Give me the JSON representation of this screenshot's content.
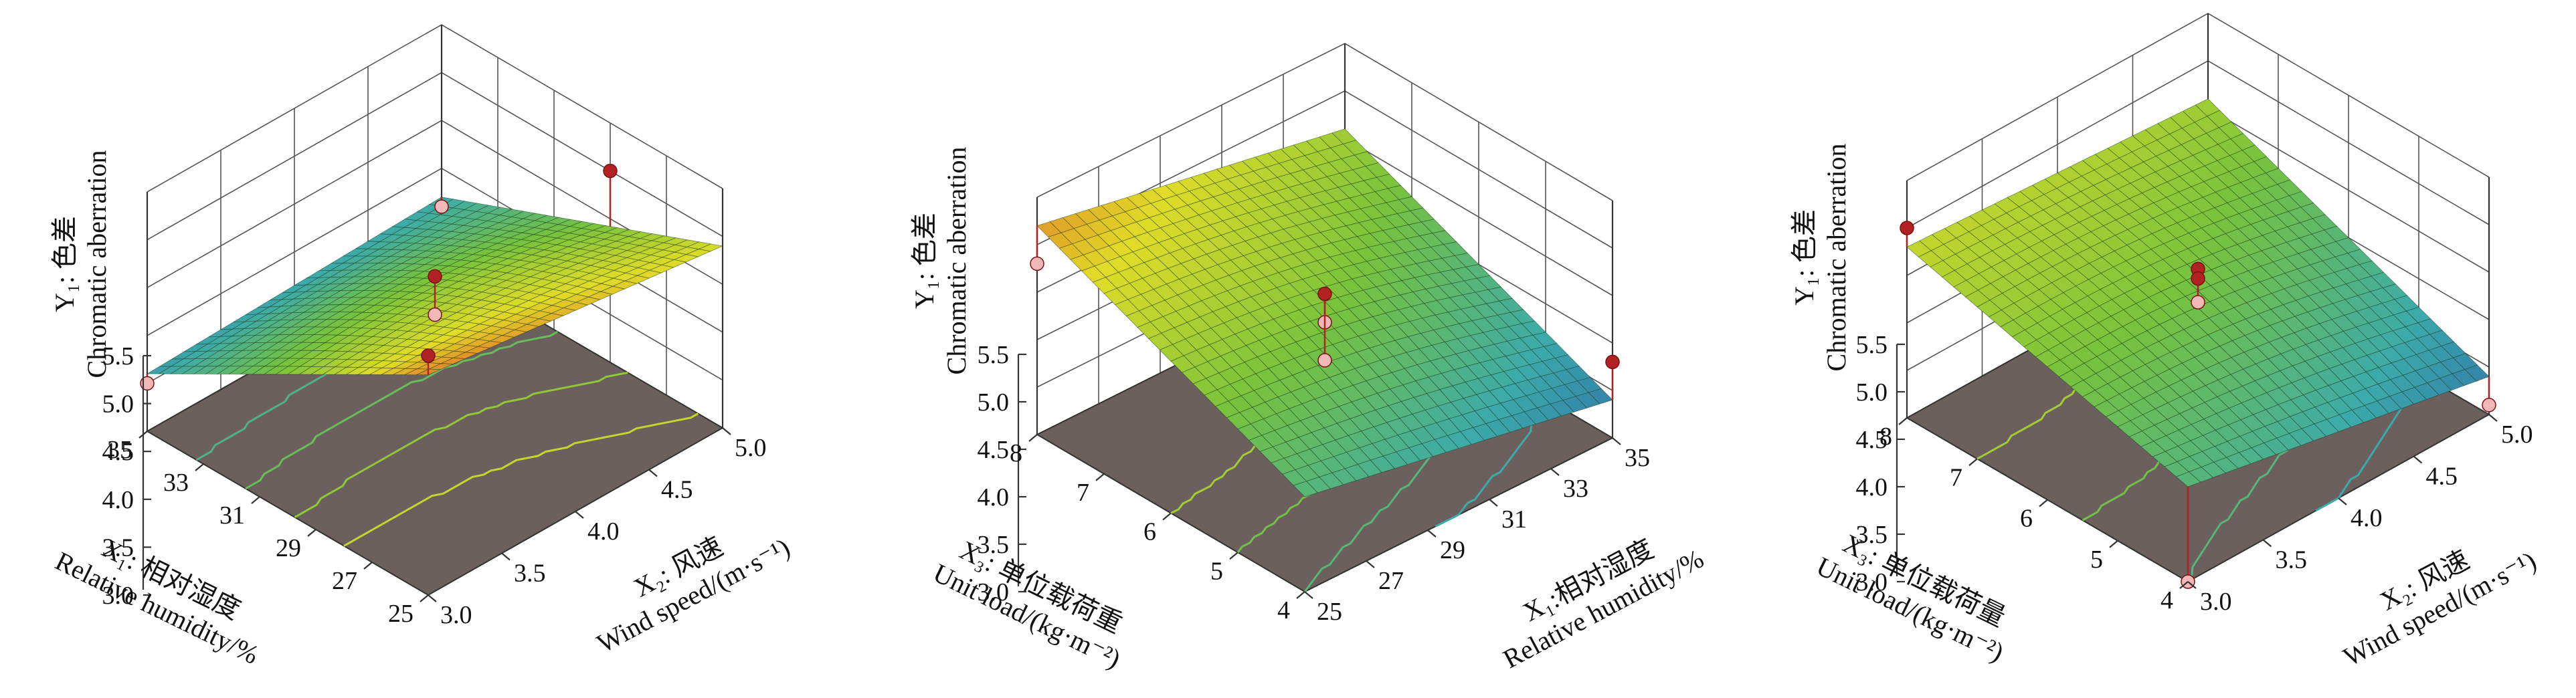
{
  "colors": {
    "floor": "#6b605d",
    "point_above": "#b22222",
    "point_below": "#f2b8b8"
  },
  "chart_data": [
    {
      "type": "surface3d",
      "x": {
        "label_line1": "X₁: 相对湿度",
        "label_line2": "Relative humidity/%",
        "range": [
          25,
          35
        ],
        "ticks": [
          "25",
          "27",
          "29",
          "31",
          "33",
          "35"
        ]
      },
      "y": {
        "label_line1": "X₂: 风速",
        "label_line2": "Wind speed/(m·s⁻¹)",
        "range": [
          3.0,
          5.0
        ],
        "ticks": [
          "3.0",
          "3.5",
          "4.0",
          "4.5",
          "5.0"
        ]
      },
      "z": {
        "label_line1": "Y₁: 色差",
        "label_line2": "Chromatic aberration",
        "range": [
          3.0,
          5.5
        ],
        "ticks": [
          "3.0",
          "3.5",
          "4.0",
          "4.5",
          "5.0",
          "5.5"
        ]
      },
      "surface_corners": {
        "x_min_y_min": 5.3,
        "x_max_y_min": 3.6,
        "x_min_y_max": 4.9,
        "x_max_y_max": 3.7
      },
      "points": [
        [
          25,
          3.0,
          5.5
        ],
        [
          29,
          5.0,
          5.0
        ],
        [
          30,
          4.0,
          4.6
        ],
        [
          30,
          4.0,
          4.2
        ],
        [
          35,
          3.0,
          3.5
        ],
        [
          35,
          5.0,
          3.6
        ]
      ]
    },
    {
      "type": "surface3d",
      "x": {
        "label_line1": "X₃: 单位载荷重",
        "label_line2": "Unit load/(kg·m⁻²)",
        "range": [
          4,
          8
        ],
        "ticks": [
          "4",
          "5",
          "6",
          "7",
          "8"
        ]
      },
      "y": {
        "label_line1": "X₁:相对湿度",
        "label_line2": "Relative humidity/%",
        "range": [
          25,
          35
        ],
        "ticks": [
          "25",
          "27",
          "29",
          "31",
          "33",
          "35"
        ]
      },
      "z": {
        "label_line1": "Y₁: 色差",
        "label_line2": "Chromatic aberration",
        "range": [
          3.0,
          5.5
        ],
        "ticks": [
          "3.0",
          "3.5",
          "4.0",
          "4.5",
          "5.0",
          "5.5"
        ]
      },
      "surface_corners": {
        "x_min_y_min": 4.0,
        "x_max_y_min": 5.2,
        "x_min_y_max": 3.4,
        "x_max_y_max": 4.6
      },
      "points": [
        [
          8,
          25,
          4.8
        ],
        [
          6,
          30,
          4.5
        ],
        [
          6,
          30,
          4.2
        ],
        [
          6,
          30,
          3.8
        ],
        [
          4,
          35,
          3.8
        ]
      ]
    },
    {
      "type": "surface3d",
      "x": {
        "label_line1": "X₃: 单位载荷量",
        "label_line2": "Unit load/(kg·m⁻²)",
        "range": [
          4,
          8
        ],
        "ticks": [
          "4",
          "5",
          "6",
          "7",
          "8"
        ]
      },
      "y": {
        "label_line1": "X₂: 风速",
        "label_line2": "Wind speed/(m·s⁻¹)",
        "range": [
          3.0,
          5.0
        ],
        "ticks": [
          "3.0",
          "3.5",
          "4.0",
          "4.5",
          "5.0"
        ]
      },
      "z": {
        "label_line1": "Y₁: 色差",
        "label_line2": "Chromatic aberration",
        "range": [
          3.0,
          5.5
        ],
        "ticks": [
          "3.0",
          "3.5",
          "4.0",
          "4.5",
          "5.0",
          "5.5"
        ]
      },
      "surface_corners": {
        "x_min_y_min": 4.0,
        "x_max_y_min": 4.8,
        "x_min_y_max": 3.4,
        "x_max_y_max": 4.6
      },
      "points": [
        [
          8,
          3.0,
          5.0
        ],
        [
          6,
          4.0,
          4.55
        ],
        [
          6,
          4.0,
          4.45
        ],
        [
          6,
          4.0,
          4.2
        ],
        [
          4,
          3.0,
          3.0
        ],
        [
          4,
          5.0,
          3.1
        ]
      ]
    }
  ]
}
